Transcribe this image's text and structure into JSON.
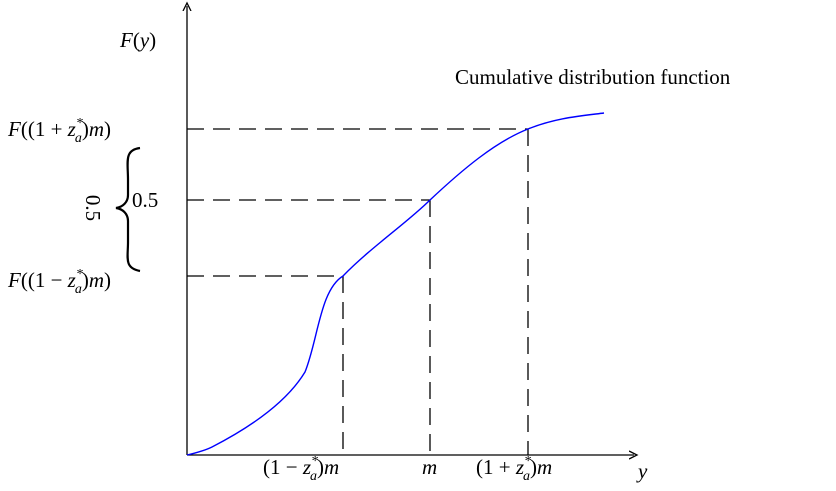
{
  "figure": {
    "caption": "Cumulative distribution function",
    "y_axis_label": "F(y)",
    "x_axis_label": "y",
    "y_ticks": {
      "upper": "F((1+z*a)m)",
      "middle": "0.5",
      "lower": "F((1−z*a)m)"
    },
    "x_ticks": {
      "left": "(1−z*a)m",
      "middle": "m",
      "right": "(1+z*a)m"
    },
    "brace_label": "0.5",
    "curve_color": "#0000ff",
    "axis_color": "#000000"
  }
}
